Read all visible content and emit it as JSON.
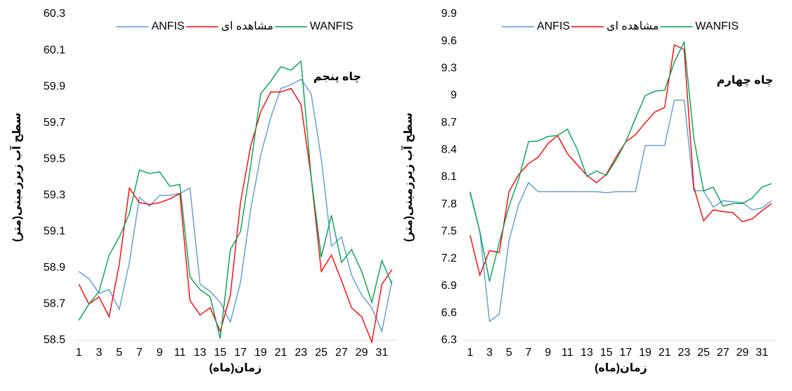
{
  "chart_data": [
    {
      "type": "line",
      "title": "چاه پنجم",
      "x_label": "زمان(ماه)",
      "y_label": "سطح آب زیرزمینی(متر)",
      "categories": [
        1,
        null,
        3,
        null,
        5,
        null,
        7,
        null,
        9,
        null,
        11,
        null,
        13,
        null,
        15,
        null,
        17,
        null,
        19,
        null,
        21,
        null,
        23,
        null,
        25,
        null,
        27,
        null,
        29,
        null,
        31,
        null
      ],
      "ylim": [
        58.5,
        60.3
      ],
      "yticks": [
        58.5,
        58.7,
        58.9,
        59.1,
        59.3,
        59.5,
        59.7,
        59.9,
        60.1,
        60.3
      ],
      "legend": "top",
      "series": [
        {
          "name": "ANFIS",
          "color": "#5b9bd5",
          "values": [
            58.88,
            58.84,
            58.76,
            58.78,
            58.67,
            58.93,
            59.29,
            59.24,
            59.3,
            59.3,
            59.31,
            59.34,
            58.81,
            58.77,
            58.71,
            58.6,
            58.82,
            59.22,
            59.52,
            59.73,
            59.89,
            59.91,
            59.94,
            59.86,
            59.5,
            59.02,
            59.07,
            58.86,
            58.75,
            58.68,
            58.55,
            58.83
          ]
        },
        {
          "name": "مشاهده ای",
          "color": "#ff0000",
          "values": [
            58.81,
            58.7,
            58.74,
            58.63,
            58.92,
            59.34,
            59.26,
            59.25,
            59.26,
            59.28,
            59.31,
            58.72,
            58.64,
            58.68,
            58.55,
            58.75,
            59.26,
            59.57,
            59.76,
            59.87,
            59.87,
            59.89,
            59.8,
            59.4,
            58.88,
            58.97,
            58.83,
            58.68,
            58.63,
            58.49,
            58.81,
            58.89
          ]
        },
        {
          "name": "WANFIS",
          "color": "#00a050",
          "values": [
            58.61,
            58.7,
            58.77,
            58.97,
            59.07,
            59.2,
            59.44,
            59.42,
            59.43,
            59.35,
            59.36,
            58.85,
            58.78,
            58.74,
            58.51,
            59.0,
            59.1,
            59.46,
            59.86,
            59.93,
            60.01,
            59.99,
            60.04,
            59.4,
            58.96,
            59.19,
            58.93,
            59.0,
            58.88,
            58.71,
            58.94,
            58.81
          ]
        }
      ]
    },
    {
      "type": "line",
      "title": "چاه چهارم",
      "x_label": "زمان(ماه)",
      "y_label": "سطح آب زیرزمینی(متر)",
      "categories": [
        1,
        null,
        3,
        null,
        5,
        null,
        7,
        null,
        9,
        null,
        11,
        null,
        13,
        null,
        15,
        null,
        17,
        null,
        19,
        null,
        21,
        null,
        23,
        null,
        25,
        null,
        27,
        null,
        29,
        null,
        31,
        null
      ],
      "ylim": [
        6.3,
        9.9
      ],
      "yticks": [
        6.3,
        6.6,
        6.9,
        7.2,
        7.5,
        7.8,
        8.1,
        8.4,
        8.7,
        9,
        9.3,
        9.6,
        9.9
      ],
      "legend": "top",
      "series": [
        {
          "name": "ANFIS",
          "color": "#5b9bd5",
          "values": [
            7.93,
            7.5,
            6.51,
            6.59,
            7.4,
            7.8,
            8.04,
            7.94,
            7.94,
            7.94,
            7.94,
            7.94,
            7.94,
            7.94,
            7.93,
            7.94,
            7.94,
            7.94,
            8.45,
            8.45,
            8.45,
            8.95,
            8.95,
            7.95,
            7.95,
            7.77,
            7.84,
            7.83,
            7.82,
            7.74,
            7.76,
            7.84
          ]
        },
        {
          "name": "مشاهده ای",
          "color": "#ff0000",
          "values": [
            7.46,
            7.02,
            7.29,
            7.27,
            7.94,
            8.13,
            8.25,
            8.32,
            8.47,
            8.56,
            8.36,
            8.24,
            8.12,
            8.04,
            8.13,
            8.32,
            8.49,
            8.57,
            8.7,
            8.82,
            8.87,
            9.56,
            9.51,
            7.99,
            7.62,
            7.74,
            7.72,
            7.71,
            7.61,
            7.64,
            7.73,
            7.81
          ]
        },
        {
          "name": "WANFIS",
          "color": "#00a050",
          "values": [
            7.94,
            7.5,
            6.95,
            7.38,
            7.78,
            8.08,
            8.49,
            8.5,
            8.55,
            8.56,
            8.63,
            8.41,
            8.11,
            8.17,
            8.12,
            8.29,
            8.49,
            8.75,
            9.0,
            9.05,
            9.06,
            9.37,
            9.59,
            8.53,
            7.95,
            7.99,
            7.78,
            7.81,
            7.81,
            7.87,
            7.99,
            8.03
          ]
        }
      ]
    }
  ]
}
